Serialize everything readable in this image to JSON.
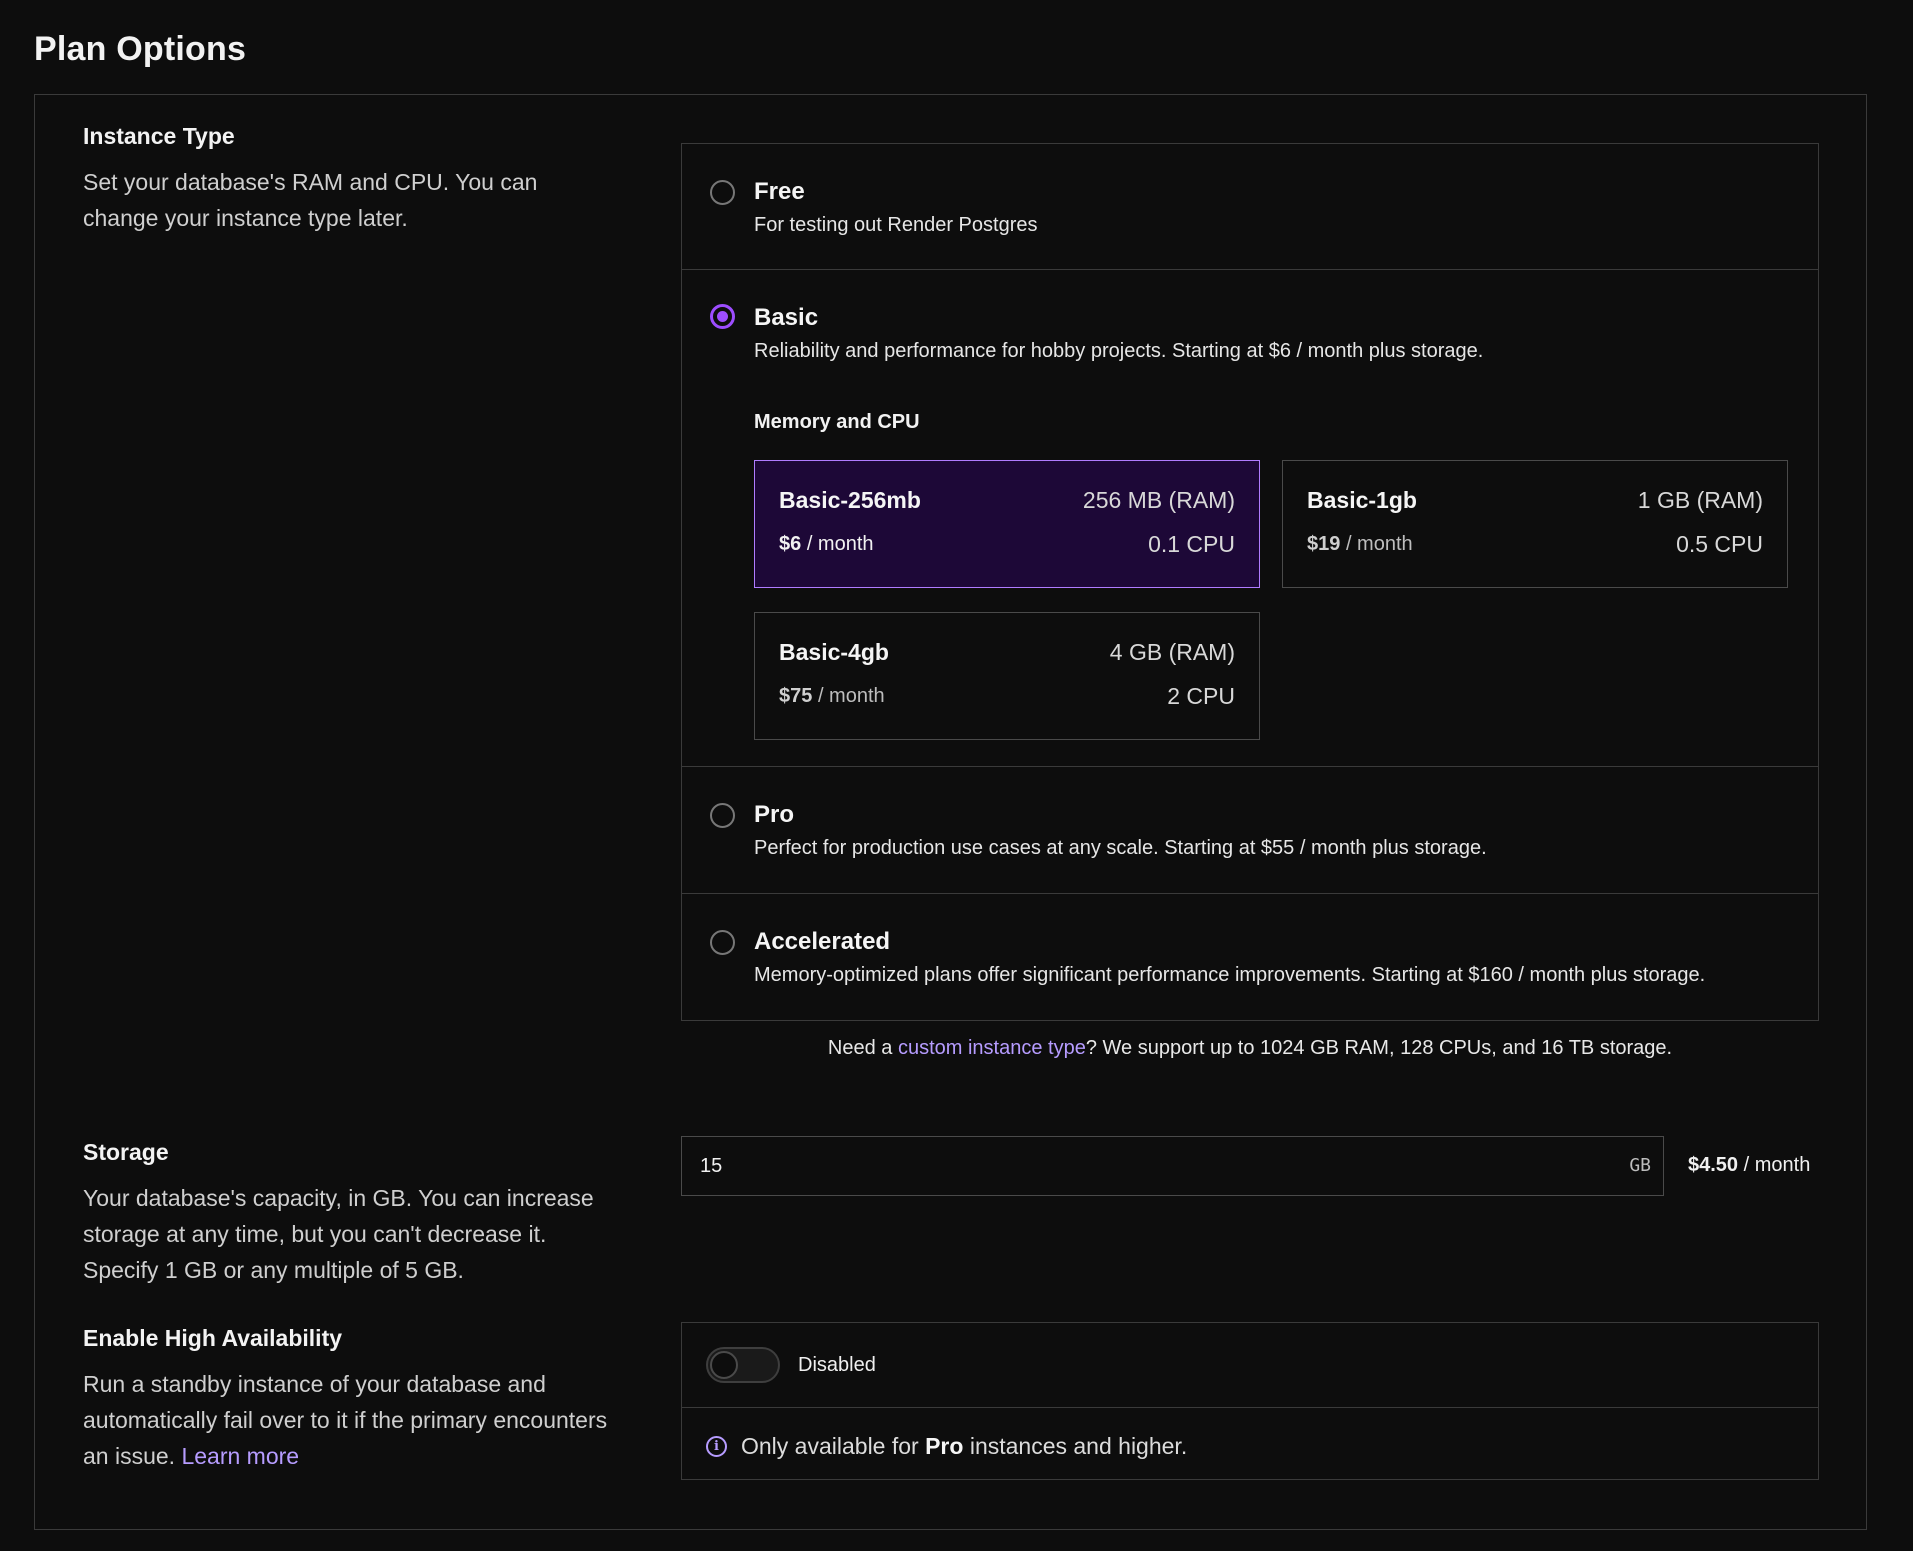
{
  "page": {
    "title": "Plan Options"
  },
  "instance_type": {
    "heading": "Instance Type",
    "description": "Set your database's RAM and CPU. You can change your instance type later.",
    "plans": [
      {
        "name": "Free",
        "description": "For testing out Render Postgres",
        "selected": false
      },
      {
        "name": "Basic",
        "description": "Reliability and performance for hobby projects. Starting at $6 / month plus storage.",
        "selected": true
      },
      {
        "name": "Pro",
        "description": "Perfect for production use cases at any scale. Starting at $55 / month plus storage.",
        "selected": false
      },
      {
        "name": "Accelerated",
        "description": "Memory-optimized plans offer significant performance improvements. Starting at $160 / month plus storage.",
        "selected": false
      }
    ],
    "memory_cpu_label": "Memory and CPU",
    "tiers": [
      {
        "name": "Basic-256mb",
        "ram": "256 MB (RAM)",
        "price": "$6",
        "period": "/ month",
        "cpu": "0.1 CPU",
        "selected": true
      },
      {
        "name": "Basic-1gb",
        "ram": "1 GB (RAM)",
        "price": "$19",
        "period": "/ month",
        "cpu": "0.5 CPU",
        "selected": false
      },
      {
        "name": "Basic-4gb",
        "ram": "4 GB (RAM)",
        "price": "$75",
        "period": "/ month",
        "cpu": "2 CPU",
        "selected": false
      }
    ],
    "custom_note": {
      "prefix": "Need a ",
      "link": "custom instance type",
      "suffix": "? We support up to 1024 GB RAM, 128 CPUs, and 16 TB storage."
    }
  },
  "storage": {
    "heading": "Storage",
    "description": "Your database's capacity, in GB. You can increase storage at any time, but you can't decrease it. Specify 1 GB or any multiple of 5 GB.",
    "value": "15",
    "unit": "GB",
    "price": "$4.50",
    "period": "/ month"
  },
  "high_availability": {
    "heading": "Enable High Availability",
    "description": "Run a standby instance of your database and automatically fail over to it if the primary encounters an issue.",
    "learn_more": "Learn more",
    "toggle_label": "Disabled",
    "note_prefix": "Only available for ",
    "note_bold": "Pro",
    "note_suffix": " instances and higher.",
    "info_icon_glyph": "i"
  },
  "colors": {
    "accent": "#9d4dff",
    "link": "#b69cff",
    "selected_bg": "#1d0837"
  }
}
